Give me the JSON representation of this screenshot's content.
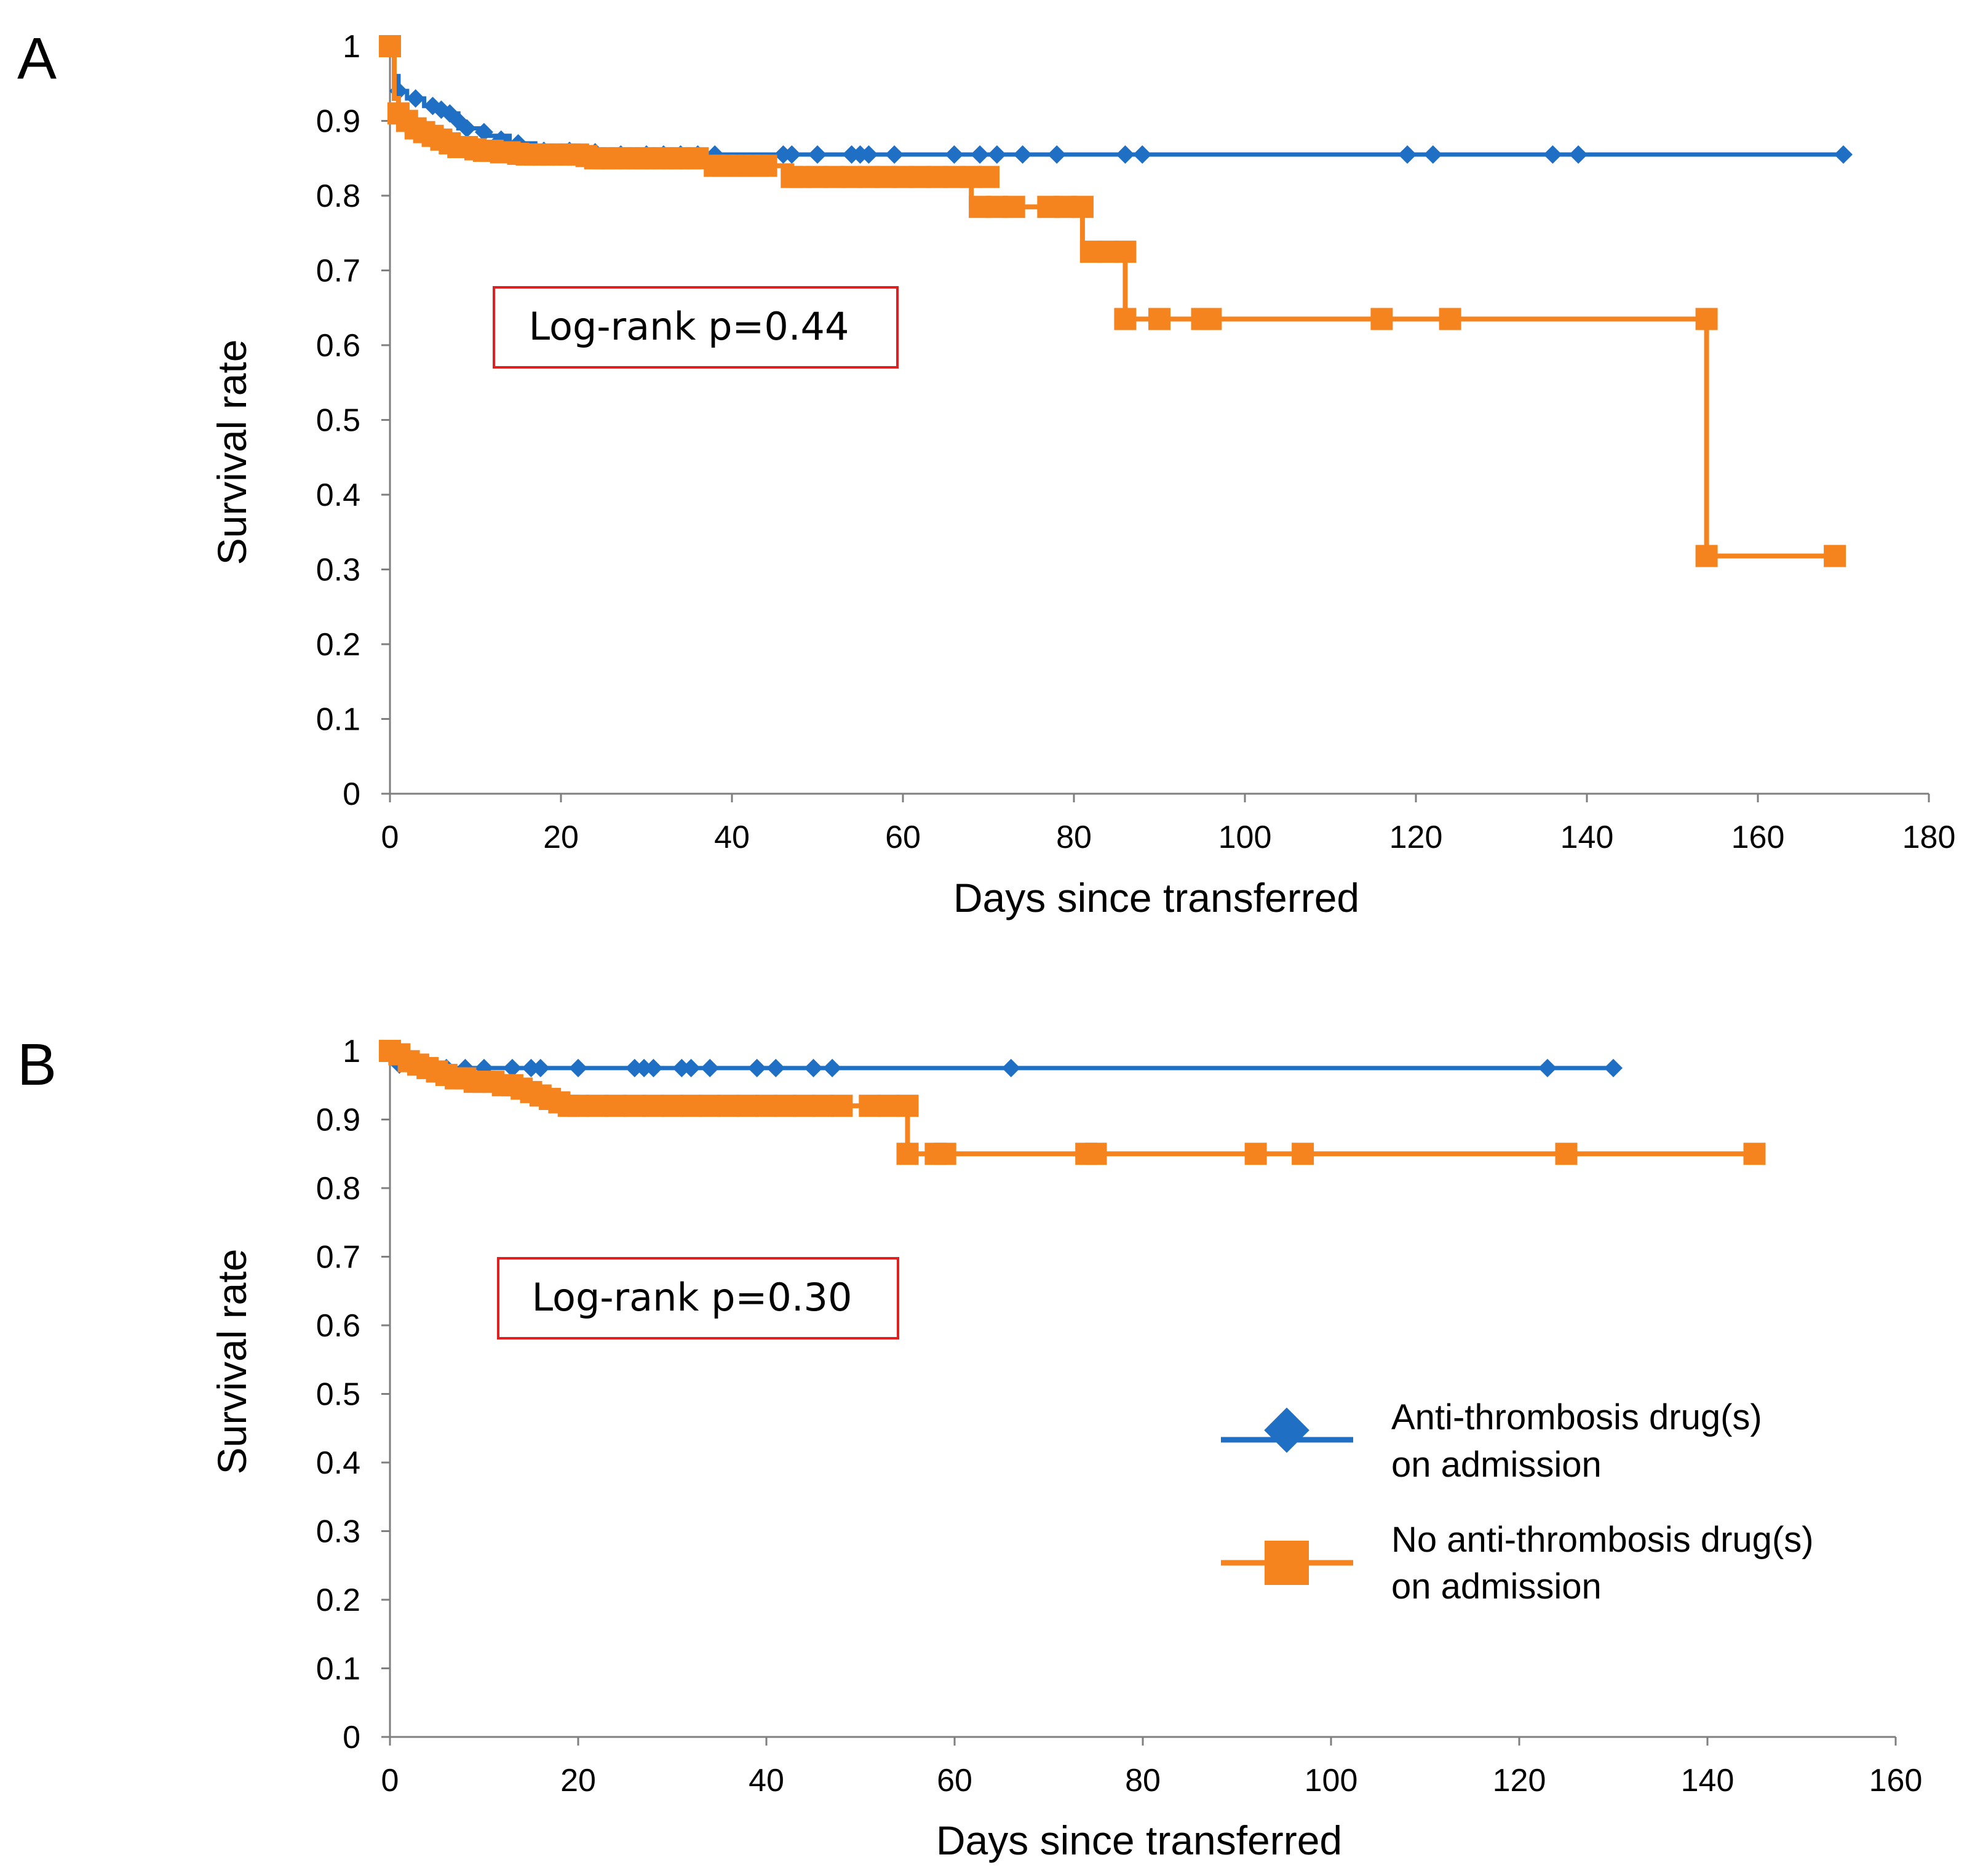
{
  "colors": {
    "blue": "#1f6fc4",
    "orange": "#f5841f",
    "box": "#e0201e",
    "axis": "#7f7f7f"
  },
  "legend": [
    {
      "lines": [
        "Anti-thrombosis drug(s)",
        "on admission"
      ],
      "marker": "diamond",
      "color": "#1f6fc4"
    },
    {
      "lines": [
        "No anti-thrombosis drug(s)",
        "on admission"
      ],
      "marker": "square",
      "color": "#f5841f"
    }
  ],
  "chart_data": [
    {
      "type": "line",
      "panel": "A",
      "annotation": "Log-rank p=0.44",
      "xlabel": "Days since transferred",
      "ylabel": "Survival rate",
      "xlim": [
        0,
        180
      ],
      "ylim": [
        0,
        1
      ],
      "xticks": [
        "0",
        "20",
        "40",
        "60",
        "80",
        "100",
        "120",
        "140",
        "160",
        "180"
      ],
      "yticks": [
        "0",
        "0.1",
        "0.2",
        "0.3",
        "0.4",
        "0.5",
        "0.6",
        "0.7",
        "0.8",
        "0.9",
        "1"
      ],
      "series": [
        {
          "name": "Anti-thrombosis drug(s) on admission",
          "marker": "diamond",
          "color": "#1f6fc4",
          "steps": [
            [
              0,
              1
            ],
            [
              0.5,
              0.96
            ],
            [
              1,
              0.94
            ],
            [
              2,
              0.93
            ],
            [
              4,
              0.92
            ],
            [
              6,
              0.91
            ],
            [
              8,
              0.89
            ],
            [
              11,
              0.88
            ],
            [
              14,
              0.87
            ],
            [
              17,
              0.86
            ],
            [
              22,
              0.86
            ],
            [
              28,
              0.855
            ],
            [
              170,
              0.855
            ]
          ],
          "censored": [
            [
              0,
              1
            ],
            [
              1,
              0.94
            ],
            [
              3,
              0.93
            ],
            [
              5,
              0.92
            ],
            [
              6,
              0.915
            ],
            [
              7,
              0.91
            ],
            [
              8,
              0.9
            ],
            [
              9,
              0.89
            ],
            [
              11,
              0.885
            ],
            [
              13,
              0.875
            ],
            [
              15,
              0.87
            ],
            [
              18,
              0.86
            ],
            [
              21,
              0.86
            ],
            [
              24,
              0.858
            ],
            [
              27,
              0.855
            ],
            [
              30,
              0.855
            ],
            [
              32,
              0.855
            ],
            [
              34,
              0.855
            ],
            [
              36,
              0.855
            ],
            [
              38,
              0.855
            ],
            [
              46,
              0.855
            ],
            [
              47,
              0.855
            ],
            [
              50,
              0.855
            ],
            [
              54,
              0.855
            ],
            [
              55,
              0.855
            ],
            [
              56,
              0.855
            ],
            [
              59,
              0.855
            ],
            [
              66,
              0.855
            ],
            [
              69,
              0.855
            ],
            [
              71,
              0.855
            ],
            [
              74,
              0.855
            ],
            [
              78,
              0.855
            ],
            [
              86,
              0.855
            ],
            [
              88,
              0.855
            ],
            [
              119,
              0.855
            ],
            [
              122,
              0.855
            ],
            [
              136,
              0.855
            ],
            [
              139,
              0.855
            ],
            [
              170,
              0.855
            ]
          ]
        },
        {
          "name": "No anti-thrombosis drug(s) on admission",
          "marker": "square",
          "color": "#f5841f",
          "steps": [
            [
              0,
              1
            ],
            [
              0.5,
              0.93
            ],
            [
              1,
              0.91
            ],
            [
              2,
              0.89
            ],
            [
              4,
              0.88
            ],
            [
              6,
              0.87
            ],
            [
              8,
              0.865
            ],
            [
              12,
              0.86
            ],
            [
              16,
              0.855
            ],
            [
              24,
              0.85
            ],
            [
              38,
              0.84
            ],
            [
              47,
              0.825
            ],
            [
              68,
              0.785
            ],
            [
              80,
              0.785
            ],
            [
              81,
              0.725
            ],
            [
              86,
              0.635
            ],
            [
              154,
              0.635
            ],
            [
              154,
              0.318
            ],
            [
              169,
              0.318
            ]
          ],
          "censored": [
            [
              0,
              1
            ],
            [
              1,
              0.91
            ],
            [
              2,
              0.9
            ],
            [
              3,
              0.89
            ],
            [
              4,
              0.885
            ],
            [
              5,
              0.88
            ],
            [
              6,
              0.875
            ],
            [
              7,
              0.87
            ],
            [
              8,
              0.865
            ],
            [
              9,
              0.865
            ],
            [
              10,
              0.862
            ],
            [
              11,
              0.86
            ],
            [
              12,
              0.86
            ],
            [
              13,
              0.858
            ],
            [
              14,
              0.858
            ],
            [
              15,
              0.856
            ],
            [
              16,
              0.855
            ],
            [
              17,
              0.855
            ],
            [
              18,
              0.855
            ],
            [
              19,
              0.855
            ],
            [
              20,
              0.855
            ],
            [
              21,
              0.855
            ],
            [
              22,
              0.855
            ],
            [
              23,
              0.853
            ],
            [
              24,
              0.85
            ],
            [
              25,
              0.85
            ],
            [
              26,
              0.85
            ],
            [
              27,
              0.85
            ],
            [
              28,
              0.85
            ],
            [
              29,
              0.85
            ],
            [
              30,
              0.85
            ],
            [
              31,
              0.85
            ],
            [
              32,
              0.85
            ],
            [
              33,
              0.85
            ],
            [
              34,
              0.85
            ],
            [
              35,
              0.85
            ],
            [
              36,
              0.85
            ],
            [
              38,
              0.84
            ],
            [
              39,
              0.84
            ],
            [
              40,
              0.84
            ],
            [
              41,
              0.84
            ],
            [
              42,
              0.84
            ],
            [
              43,
              0.84
            ],
            [
              44,
              0.84
            ],
            [
              47,
              0.825
            ],
            [
              48,
              0.825
            ],
            [
              50,
              0.825
            ],
            [
              52,
              0.825
            ],
            [
              54,
              0.825
            ],
            [
              56,
              0.825
            ],
            [
              58,
              0.825
            ],
            [
              60,
              0.825
            ],
            [
              62,
              0.825
            ],
            [
              64,
              0.825
            ],
            [
              66,
              0.825
            ],
            [
              68,
              0.825
            ],
            [
              70,
              0.825
            ],
            [
              69,
              0.785
            ],
            [
              71,
              0.785
            ],
            [
              73,
              0.785
            ],
            [
              77,
              0.785
            ],
            [
              79,
              0.785
            ],
            [
              81,
              0.785
            ],
            [
              82,
              0.725
            ],
            [
              84,
              0.725
            ],
            [
              86,
              0.725
            ],
            [
              86,
              0.635
            ],
            [
              90,
              0.635
            ],
            [
              95,
              0.635
            ],
            [
              96,
              0.635
            ],
            [
              116,
              0.635
            ],
            [
              124,
              0.635
            ],
            [
              154,
              0.635
            ],
            [
              154,
              0.318
            ],
            [
              169,
              0.318
            ]
          ]
        }
      ]
    },
    {
      "type": "line",
      "panel": "B",
      "annotation": "Log-rank p=0.30",
      "xlabel": "Days since transferred",
      "ylabel": "Survival rate",
      "xlim": [
        0,
        160
      ],
      "ylim": [
        0,
        1
      ],
      "xticks": [
        "0",
        "20",
        "40",
        "60",
        "80",
        "100",
        "120",
        "140",
        "160"
      ],
      "yticks": [
        "0",
        "0.1",
        "0.2",
        "0.3",
        "0.4",
        "0.5",
        "0.6",
        "0.7",
        "0.8",
        "0.9",
        "1"
      ],
      "series": [
        {
          "name": "Anti-thrombosis drug(s) on admission",
          "marker": "diamond",
          "color": "#1f6fc4",
          "steps": [
            [
              0,
              1
            ],
            [
              0.5,
              0.98
            ],
            [
              3,
              0.975
            ],
            [
              130,
              0.975
            ]
          ],
          "censored": [
            [
              1,
              0.98
            ],
            [
              4,
              0.975
            ],
            [
              6,
              0.975
            ],
            [
              8,
              0.975
            ],
            [
              10,
              0.975
            ],
            [
              13,
              0.975
            ],
            [
              15,
              0.975
            ],
            [
              16,
              0.975
            ],
            [
              20,
              0.975
            ],
            [
              26,
              0.975
            ],
            [
              27,
              0.975
            ],
            [
              28,
              0.975
            ],
            [
              31,
              0.975
            ],
            [
              32,
              0.975
            ],
            [
              34,
              0.975
            ],
            [
              39,
              0.975
            ],
            [
              41,
              0.975
            ],
            [
              45,
              0.975
            ],
            [
              47,
              0.975
            ],
            [
              66,
              0.975
            ],
            [
              123,
              0.975
            ],
            [
              130,
              0.975
            ]
          ]
        },
        {
          "name": "No anti-thrombosis drug(s) on admission",
          "marker": "square",
          "color": "#f5841f",
          "steps": [
            [
              0,
              1
            ],
            [
              1,
              0.985
            ],
            [
              3,
              0.975
            ],
            [
              6,
              0.965
            ],
            [
              9,
              0.955
            ],
            [
              13,
              0.945
            ],
            [
              16,
              0.935
            ],
            [
              18,
              0.925
            ],
            [
              20,
              0.92
            ],
            [
              50,
              0.92
            ],
            [
              55,
              0.92
            ],
            [
              55,
              0.85
            ],
            [
              145,
              0.85
            ]
          ],
          "censored": [
            [
              0,
              1
            ],
            [
              1,
              0.995
            ],
            [
              2,
              0.985
            ],
            [
              3,
              0.98
            ],
            [
              4,
              0.975
            ],
            [
              5,
              0.97
            ],
            [
              6,
              0.965
            ],
            [
              7,
              0.96
            ],
            [
              8,
              0.96
            ],
            [
              9,
              0.955
            ],
            [
              10,
              0.955
            ],
            [
              11,
              0.955
            ],
            [
              12,
              0.95
            ],
            [
              13,
              0.95
            ],
            [
              14,
              0.945
            ],
            [
              15,
              0.94
            ],
            [
              16,
              0.935
            ],
            [
              17,
              0.93
            ],
            [
              18,
              0.925
            ],
            [
              19,
              0.92
            ],
            [
              20,
              0.92
            ],
            [
              22,
              0.92
            ],
            [
              24,
              0.92
            ],
            [
              26,
              0.92
            ],
            [
              28,
              0.92
            ],
            [
              30,
              0.92
            ],
            [
              32,
              0.92
            ],
            [
              34,
              0.92
            ],
            [
              36,
              0.92
            ],
            [
              38,
              0.92
            ],
            [
              40,
              0.92
            ],
            [
              42,
              0.92
            ],
            [
              44,
              0.92
            ],
            [
              46,
              0.92
            ],
            [
              48,
              0.92
            ],
            [
              51,
              0.92
            ],
            [
              53,
              0.92
            ],
            [
              55,
              0.92
            ],
            [
              55,
              0.85
            ],
            [
              58,
              0.85
            ],
            [
              59,
              0.85
            ],
            [
              74,
              0.85
            ],
            [
              75,
              0.85
            ],
            [
              92,
              0.85
            ],
            [
              97,
              0.85
            ],
            [
              125,
              0.85
            ],
            [
              145,
              0.85
            ]
          ]
        }
      ]
    }
  ]
}
